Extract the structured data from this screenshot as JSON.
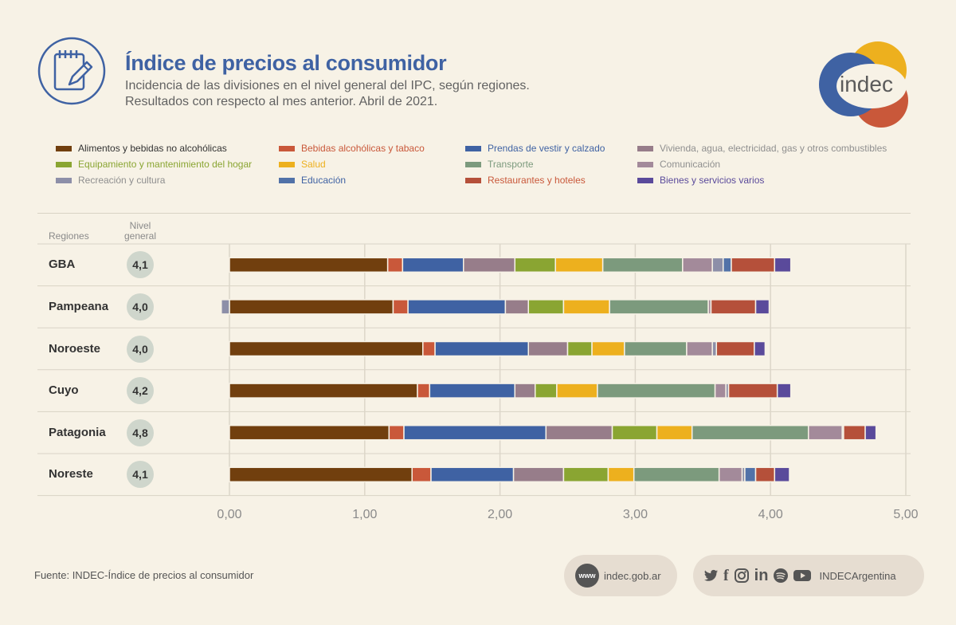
{
  "header": {
    "title": "Índice de precios al consumidor",
    "subtitle_line1": "Incidencia de las divisiones en el nivel general del IPC, según regiones.",
    "subtitle_line2": "Resultados con respecto al mes anterior. Abril de 2021.",
    "logo_text": "indec"
  },
  "columns": {
    "regions": "Regiones",
    "general_line1": "Nivel",
    "general_line2": "general"
  },
  "chart_data": {
    "type": "bar",
    "orientation": "horizontal",
    "stacked": true,
    "xlim": [
      0,
      5
    ],
    "xticks": [
      "0,00",
      "1,00",
      "2,00",
      "3,00",
      "4,00",
      "5,00"
    ],
    "tick_values": [
      0,
      1,
      2,
      3,
      4,
      5
    ],
    "grid": true,
    "legend_position": "top",
    "categories": [
      "GBA",
      "Pampeana",
      "Noroeste",
      "Cuyo",
      "Patagonia",
      "Noreste"
    ],
    "general_level": [
      "4,1",
      "4,0",
      "4,0",
      "4,2",
      "4,8",
      "4,1"
    ],
    "series": [
      {
        "name": "Alimentos y bebidas no alcohólicas",
        "color": "#713f0e",
        "label_color": "#333333",
        "values": [
          1.17,
          1.21,
          1.43,
          1.39,
          1.18,
          1.35
        ]
      },
      {
        "name": "Bebidas alcohólicas y tabaco",
        "color": "#c9583a",
        "label_color": "#c9583a",
        "values": [
          0.11,
          0.11,
          0.09,
          0.09,
          0.11,
          0.14
        ]
      },
      {
        "name": "Prendas de vestir y calzado",
        "color": "#3f62a3",
        "label_color": "#3f62a3",
        "values": [
          0.45,
          0.72,
          0.69,
          0.63,
          1.05,
          0.61
        ]
      },
      {
        "name": "Vivienda, agua, electricidad, gas y otros combustibles",
        "color": "#977d8a",
        "label_color": "#8f8f8f",
        "values": [
          0.38,
          0.17,
          0.29,
          0.15,
          0.49,
          0.37
        ]
      },
      {
        "name": "Equipamiento y mantenimiento del hogar",
        "color": "#8aa532",
        "label_color": "#8aa532",
        "values": [
          0.3,
          0.26,
          0.18,
          0.16,
          0.33,
          0.33
        ]
      },
      {
        "name": "Salud",
        "color": "#edb01e",
        "label_color": "#edb01e",
        "values": [
          0.35,
          0.34,
          0.24,
          0.3,
          0.26,
          0.19
        ]
      },
      {
        "name": "Transporte",
        "color": "#7c9a7d",
        "label_color": "#7c9a7d",
        "values": [
          0.59,
          0.73,
          0.46,
          0.87,
          0.86,
          0.63
        ]
      },
      {
        "name": "Comunicación",
        "color": "#a38a9a",
        "label_color": "#8f8f8f",
        "values": [
          0.22,
          0.02,
          0.19,
          0.08,
          0.25,
          0.17
        ]
      },
      {
        "name": "Recreación y cultura",
        "color": "#8d8fa8",
        "label_color": "#8f8f8f",
        "values": [
          0.08,
          -0.06,
          0.03,
          0.02,
          0.01,
          0.02
        ]
      },
      {
        "name": "Educación",
        "color": "#5172a8",
        "label_color": "#3f62a3",
        "values": [
          0.06,
          0.0,
          0.0,
          0.0,
          0.0,
          0.08
        ]
      },
      {
        "name": "Restaurantes y hoteles",
        "color": "#b5503a",
        "label_color": "#c9583a",
        "values": [
          0.32,
          0.33,
          0.28,
          0.36,
          0.16,
          0.14
        ]
      },
      {
        "name": "Bienes y servicios varios",
        "color": "#5a4a9b",
        "label_color": "#5a4a9b",
        "values": [
          0.12,
          0.1,
          0.08,
          0.1,
          0.08,
          0.11
        ]
      }
    ]
  },
  "footer": {
    "source": "Fuente: INDEC-Índice de precios al consumidor",
    "www_badge": "www",
    "website": "indec.gob.ar",
    "social_handle": "INDECArgentina",
    "social_icons": [
      "twitter-icon",
      "facebook-icon",
      "instagram-icon",
      "linkedin-icon",
      "spotify-icon",
      "youtube-icon"
    ]
  }
}
